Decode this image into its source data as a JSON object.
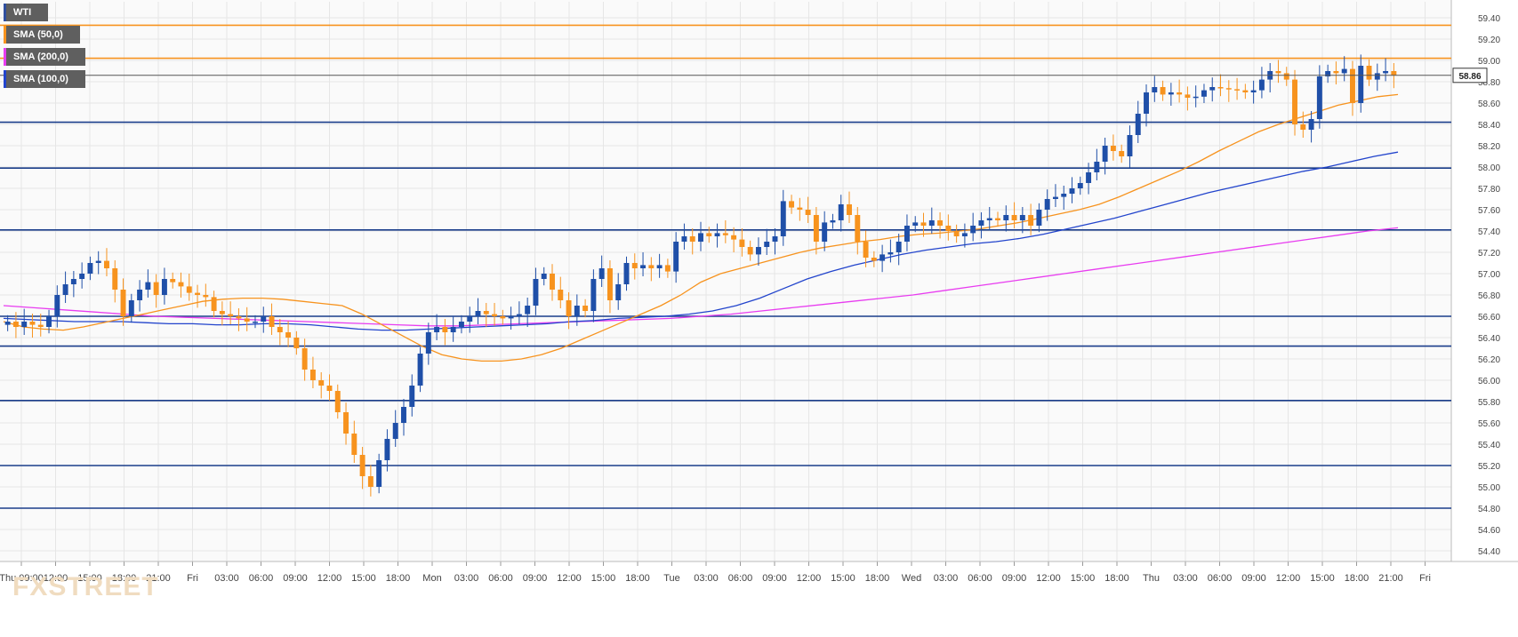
{
  "instrument": "WTI",
  "legend": [
    {
      "label": "WTI",
      "color": "#2f4f9f"
    },
    {
      "label": "SMA (50,0)",
      "color": "#f7931e"
    },
    {
      "label": "SMA (200,0)",
      "color": "#e83cf0"
    },
    {
      "label": "SMA (100,0)",
      "color": "#2244cc"
    }
  ],
  "watermark": {
    "part1": "FX",
    "part2": "STREET"
  },
  "last_price": "58.86",
  "colors": {
    "up": "#1f4fa8",
    "down": "#f7931e",
    "sma50": "#f7931e",
    "sma100": "#2244cc",
    "sma200": "#e83cf0",
    "level": "#1a3d8a",
    "resistance": "#f7931e",
    "grid": "#e6e6e6",
    "axis_text": "#444444"
  },
  "chart_data": {
    "type": "candlestick",
    "title": "",
    "ylim": [
      54.3,
      59.55
    ],
    "y_ticks": [
      "59.40",
      "59.20",
      "59.00",
      "58.80",
      "58.60",
      "58.40",
      "58.20",
      "58.00",
      "57.80",
      "57.60",
      "57.40",
      "57.20",
      "57.00",
      "56.80",
      "56.60",
      "56.40",
      "56.20",
      "56.00",
      "55.80",
      "55.60",
      "55.40",
      "55.20",
      "55.00",
      "54.80",
      "54.60",
      "54.40"
    ],
    "x_ticks": [
      "Thu 09:00",
      "12:00",
      "15:00",
      "18:00",
      "21:00",
      "Fri",
      "03:00",
      "06:00",
      "09:00",
      "12:00",
      "15:00",
      "18:00",
      "Mon",
      "03:00",
      "06:00",
      "09:00",
      "12:00",
      "15:00",
      "18:00",
      "Tue",
      "03:00",
      "06:00",
      "09:00",
      "12:00",
      "15:00",
      "18:00",
      "Wed",
      "03:00",
      "06:00",
      "09:00",
      "12:00",
      "15:00",
      "18:00",
      "Thu",
      "03:00",
      "06:00",
      "09:00",
      "12:00",
      "15:00",
      "18:00",
      "21:00",
      "Fri"
    ],
    "horizontal_levels": [
      {
        "value": 59.33,
        "kind": "resistance"
      },
      {
        "value": 59.02,
        "kind": "resistance"
      },
      {
        "value": 58.42,
        "kind": "level"
      },
      {
        "value": 57.99,
        "kind": "level"
      },
      {
        "value": 57.41,
        "kind": "level"
      },
      {
        "value": 56.6,
        "kind": "level"
      },
      {
        "value": 56.32,
        "kind": "level"
      },
      {
        "value": 55.81,
        "kind": "level"
      },
      {
        "value": 55.2,
        "kind": "level"
      },
      {
        "value": 54.8,
        "kind": "level"
      }
    ],
    "close_series": [
      56.55,
      56.5,
      56.55,
      56.52,
      56.5,
      56.6,
      56.8,
      56.9,
      56.95,
      57.0,
      57.1,
      57.12,
      57.05,
      56.85,
      56.6,
      56.75,
      56.85,
      56.92,
      56.8,
      56.95,
      56.92,
      56.88,
      56.82,
      56.8,
      56.78,
      56.65,
      56.62,
      56.6,
      56.58,
      56.55,
      56.55,
      56.6,
      56.5,
      56.45,
      56.4,
      56.3,
      56.1,
      56.0,
      55.95,
      55.9,
      55.7,
      55.5,
      55.3,
      55.1,
      55.0,
      55.25,
      55.45,
      55.6,
      55.75,
      55.95,
      56.25,
      56.45,
      56.5,
      56.45,
      56.5,
      56.55,
      56.6,
      56.65,
      56.62,
      56.6,
      56.58,
      56.6,
      56.62,
      56.7,
      56.95,
      57.0,
      56.85,
      56.75,
      56.6,
      56.7,
      56.65,
      56.95,
      57.05,
      56.75,
      56.9,
      57.1,
      57.05,
      57.08,
      57.05,
      57.08,
      57.02,
      57.3,
      57.35,
      57.3,
      57.38,
      57.35,
      57.38,
      57.36,
      57.32,
      57.25,
      57.18,
      57.25,
      57.3,
      57.35,
      57.68,
      57.62,
      57.6,
      57.55,
      57.3,
      57.48,
      57.5,
      57.65,
      57.55,
      57.3,
      57.15,
      57.12,
      57.18,
      57.2,
      57.3,
      57.45,
      57.48,
      57.45,
      57.5,
      57.45,
      57.4,
      57.35,
      57.38,
      57.45,
      57.5,
      57.52,
      57.5,
      57.55,
      57.5,
      57.55,
      57.45,
      57.6,
      57.7,
      57.72,
      57.75,
      57.8,
      57.85,
      57.95,
      58.05,
      58.2,
      58.15,
      58.1,
      58.3,
      58.5,
      58.7,
      58.75,
      58.68,
      58.7,
      58.68,
      58.65,
      58.66,
      58.72,
      58.75,
      58.74,
      58.73,
      58.72,
      58.7,
      58.72,
      58.82,
      58.9,
      58.88,
      58.82,
      58.4,
      58.35,
      58.45,
      58.85,
      58.9,
      58.88,
      58.92,
      58.6,
      58.95,
      58.82,
      58.88,
      58.9,
      58.86
    ],
    "sma50": [
      56.55,
      56.5,
      56.48,
      56.47,
      56.5,
      56.54,
      56.58,
      56.62,
      56.66,
      56.7,
      56.74,
      56.76,
      56.77,
      56.77,
      56.76,
      56.74,
      56.72,
      56.7,
      56.62,
      56.52,
      56.42,
      56.32,
      56.24,
      56.2,
      56.18,
      56.18,
      56.2,
      56.24,
      56.3,
      56.38,
      56.46,
      56.54,
      56.62,
      56.7,
      56.8,
      56.92,
      57.0,
      57.05,
      57.1,
      57.15,
      57.2,
      57.24,
      57.27,
      57.3,
      57.32,
      57.35,
      57.37,
      57.38,
      57.4,
      57.42,
      57.45,
      57.48,
      57.52,
      57.56,
      57.6,
      57.65,
      57.72,
      57.8,
      57.88,
      57.96,
      58.05,
      58.15,
      58.24,
      58.33,
      58.4,
      58.46,
      58.52,
      58.58,
      58.62,
      58.66,
      58.68
    ],
    "sma100": [
      56.58,
      56.57,
      56.56,
      56.55,
      56.55,
      56.55,
      56.54,
      56.53,
      56.53,
      56.52,
      56.52,
      56.53,
      56.53,
      56.52,
      56.5,
      56.48,
      56.47,
      56.47,
      56.48,
      56.49,
      56.5,
      56.51,
      56.52,
      56.53,
      56.55,
      56.56,
      56.58,
      56.59,
      56.6,
      56.62,
      56.65,
      56.7,
      56.77,
      56.86,
      56.95,
      57.02,
      57.08,
      57.13,
      57.18,
      57.22,
      57.25,
      57.28,
      57.3,
      57.33,
      57.37,
      57.42,
      57.47,
      57.52,
      57.58,
      57.64,
      57.7,
      57.76,
      57.81,
      57.86,
      57.91,
      57.96,
      58.0,
      58.05,
      58.1,
      58.14
    ],
    "sma200": [
      56.7,
      56.68,
      56.66,
      56.64,
      56.62,
      56.6,
      56.59,
      56.58,
      56.57,
      56.56,
      56.55,
      56.54,
      56.53,
      56.52,
      56.51,
      56.51,
      56.52,
      56.53,
      56.54,
      56.55,
      56.56,
      56.57,
      56.58,
      56.6,
      56.62,
      56.65,
      56.68,
      56.71,
      56.74,
      56.77,
      56.8,
      56.84,
      56.88,
      56.92,
      56.96,
      57.0,
      57.04,
      57.08,
      57.12,
      57.16,
      57.2,
      57.24,
      57.28,
      57.32,
      57.36,
      57.4,
      57.43
    ]
  }
}
